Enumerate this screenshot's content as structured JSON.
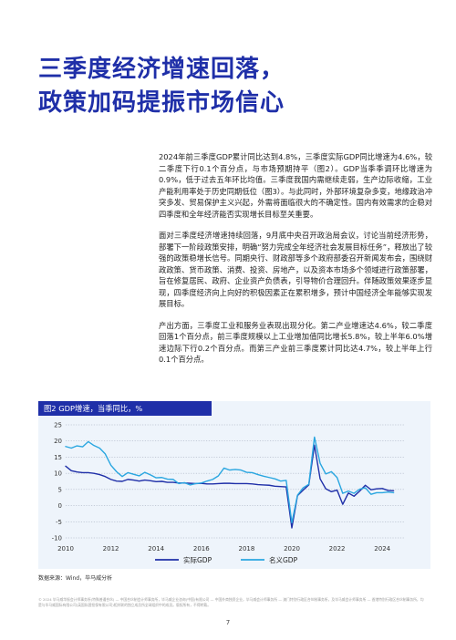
{
  "title": {
    "line1": "三季度经济增速回落，",
    "line2": "政策加码提振市场信心"
  },
  "body": {
    "paragraphs": [
      "2024年前三季度GDP累计同比达到4.8%，三季度实际GDP同比增速为4.6%，较二季度下行0.1个百分点，与市场预期持平（图2）。GDP当季季调环比增速为0.9%，低于过去五年环比均值。三季度我国内需继续走弱，生产边际收缩，工业产能利用率处于历史同期低位（图3）。与此同时，外部环境复杂多变，地缘政治冲突多发、贸易保护主义兴起，外需将面临很大的不确定性。国内有效需求的企稳对四季度和全年经济能否实现增长目标至关重要。",
      "面对三季度经济增速持续回落，9月底中央召开政治局会议，讨论当前经济形势，部署下一阶段政策安排，明确“努力完成全年经济社会发展目标任务”，释放出了较强的政策稳增长信号。同期央行、财政部等多个政府部委召开新闻发布会，围绕财政政策、货币政策、消费、投资、房地产，以及资本市场多个领域进行政策部署，旨在修复居民、政府、企业资产负债表，引导物价合理回升。伴随政策效果逐步显现，四季度经济向上向好的积极因素正在累积增多，预计中国经济全年能够实现发展目标。",
      "产出方面，三季度工业和服务业表现出现分化。第二产业增速达4.6%，较二季度回落1个百分点，前三季度规模以上工业增加值同比增长5.8%，较上半年6.0%增速边际下行0.2个百分点。而第三产业前三季度累计同比达4.7%，较上半年上行0.1个百分点。"
    ]
  },
  "figure": {
    "header": "图2 GDP增速，当季同比，%",
    "source": "数据来源：Wind，毕马威分析"
  },
  "chart_data": {
    "type": "line",
    "title": "图2 GDP增速，当季同比，%",
    "xlabel": "",
    "ylabel": "",
    "x_ticks": [
      "2010",
      "2012",
      "2014",
      "2016",
      "2018",
      "2020",
      "2022",
      "2024"
    ],
    "y_ticks": [
      "-10",
      "-5",
      "0",
      "5",
      "10",
      "15",
      "20",
      "25"
    ],
    "xlim": [
      2010,
      2025
    ],
    "ylim": [
      -10,
      25
    ],
    "grid": "horizontal dotted",
    "legend_position": "bottom-center",
    "series": [
      {
        "name": "实际GDP",
        "color": "#1f2fa8",
        "points": [
          [
            2010.0,
            12.2
          ],
          [
            2010.25,
            10.8
          ],
          [
            2010.5,
            10.4
          ],
          [
            2010.75,
            10.2
          ],
          [
            2011.0,
            10.2
          ],
          [
            2011.25,
            10.0
          ],
          [
            2011.5,
            9.6
          ],
          [
            2011.75,
            9.0
          ],
          [
            2012.0,
            8.1
          ],
          [
            2012.25,
            7.6
          ],
          [
            2012.5,
            7.5
          ],
          [
            2012.75,
            8.1
          ],
          [
            2013.0,
            7.9
          ],
          [
            2013.25,
            7.6
          ],
          [
            2013.5,
            7.9
          ],
          [
            2013.75,
            7.7
          ],
          [
            2014.0,
            7.4
          ],
          [
            2014.25,
            7.5
          ],
          [
            2014.5,
            7.2
          ],
          [
            2014.75,
            7.2
          ],
          [
            2015.0,
            7.0
          ],
          [
            2015.25,
            7.0
          ],
          [
            2015.5,
            6.9
          ],
          [
            2015.75,
            6.8
          ],
          [
            2016.0,
            6.9
          ],
          [
            2016.25,
            6.7
          ],
          [
            2016.5,
            6.7
          ],
          [
            2016.75,
            6.8
          ],
          [
            2017.0,
            6.9
          ],
          [
            2017.25,
            6.9
          ],
          [
            2017.5,
            6.8
          ],
          [
            2017.75,
            6.8
          ],
          [
            2018.0,
            6.8
          ],
          [
            2018.25,
            6.7
          ],
          [
            2018.5,
            6.5
          ],
          [
            2018.75,
            6.4
          ],
          [
            2019.0,
            6.3
          ],
          [
            2019.25,
            6.0
          ],
          [
            2019.5,
            5.9
          ],
          [
            2019.75,
            5.8
          ],
          [
            2020.0,
            -6.9
          ],
          [
            2020.25,
            3.1
          ],
          [
            2020.5,
            4.8
          ],
          [
            2020.75,
            6.4
          ],
          [
            2021.0,
            18.7
          ],
          [
            2021.25,
            8.3
          ],
          [
            2021.5,
            5.2
          ],
          [
            2021.75,
            4.3
          ],
          [
            2022.0,
            4.8
          ],
          [
            2022.25,
            0.4
          ],
          [
            2022.5,
            3.9
          ],
          [
            2022.75,
            2.9
          ],
          [
            2023.0,
            4.5
          ],
          [
            2023.25,
            6.3
          ],
          [
            2023.5,
            4.9
          ],
          [
            2023.75,
            5.2
          ],
          [
            2024.0,
            5.3
          ],
          [
            2024.25,
            4.7
          ],
          [
            2024.5,
            4.6
          ]
        ]
      },
      {
        "name": "名义GDP",
        "color": "#29a6e0",
        "points": [
          [
            2010.0,
            18.3
          ],
          [
            2010.25,
            17.8
          ],
          [
            2010.5,
            18.5
          ],
          [
            2010.75,
            18.2
          ],
          [
            2011.0,
            19.8
          ],
          [
            2011.25,
            18.6
          ],
          [
            2011.5,
            17.8
          ],
          [
            2011.75,
            16.0
          ],
          [
            2012.0,
            12.5
          ],
          [
            2012.25,
            10.5
          ],
          [
            2012.5,
            9.0
          ],
          [
            2012.75,
            10.2
          ],
          [
            2013.0,
            9.7
          ],
          [
            2013.25,
            9.2
          ],
          [
            2013.5,
            10.3
          ],
          [
            2013.75,
            9.5
          ],
          [
            2014.0,
            8.6
          ],
          [
            2014.25,
            8.7
          ],
          [
            2014.5,
            8.2
          ],
          [
            2014.75,
            8.1
          ],
          [
            2015.0,
            6.8
          ],
          [
            2015.25,
            7.1
          ],
          [
            2015.5,
            6.4
          ],
          [
            2015.75,
            6.8
          ],
          [
            2016.0,
            7.0
          ],
          [
            2016.25,
            7.6
          ],
          [
            2016.5,
            8.1
          ],
          [
            2016.75,
            9.2
          ],
          [
            2017.0,
            11.6
          ],
          [
            2017.25,
            11.0
          ],
          [
            2017.5,
            11.2
          ],
          [
            2017.75,
            11.0
          ],
          [
            2018.0,
            10.3
          ],
          [
            2018.25,
            10.2
          ],
          [
            2018.5,
            9.6
          ],
          [
            2018.75,
            9.1
          ],
          [
            2019.0,
            8.7
          ],
          [
            2019.25,
            8.3
          ],
          [
            2019.5,
            7.6
          ],
          [
            2019.75,
            7.8
          ],
          [
            2020.0,
            -5.3
          ],
          [
            2020.25,
            3.2
          ],
          [
            2020.5,
            5.5
          ],
          [
            2020.75,
            6.6
          ],
          [
            2021.0,
            21.2
          ],
          [
            2021.25,
            13.1
          ],
          [
            2021.5,
            9.8
          ],
          [
            2021.75,
            10.5
          ],
          [
            2022.0,
            8.7
          ],
          [
            2022.25,
            3.8
          ],
          [
            2022.5,
            4.5
          ],
          [
            2022.75,
            3.8
          ],
          [
            2023.0,
            5.1
          ],
          [
            2023.25,
            5.5
          ],
          [
            2023.5,
            3.5
          ],
          [
            2023.75,
            4.0
          ],
          [
            2024.0,
            4.0
          ],
          [
            2024.25,
            4.2
          ],
          [
            2024.5,
            4.0
          ]
        ]
      }
    ]
  },
  "footer": {
    "disclaimer": "© 2024 毕马威华振会计师事务所(特殊普通合伙) — 中国合伙制会计师事务所，毕马威企业咨询(中国)有限公司 — 中国外商独资企业，毕马威会计师事务所 — 澳门特别行政区合伙制事务所，及毕马威会计师事务所 — 香港特别行政区合伙制事务所，均是与毕马威国际有限公司(英国私营担保有限公司)相关联的独立成员所全球组织中的成员。版权所有，不得转载。",
    "page_number": "7"
  }
}
